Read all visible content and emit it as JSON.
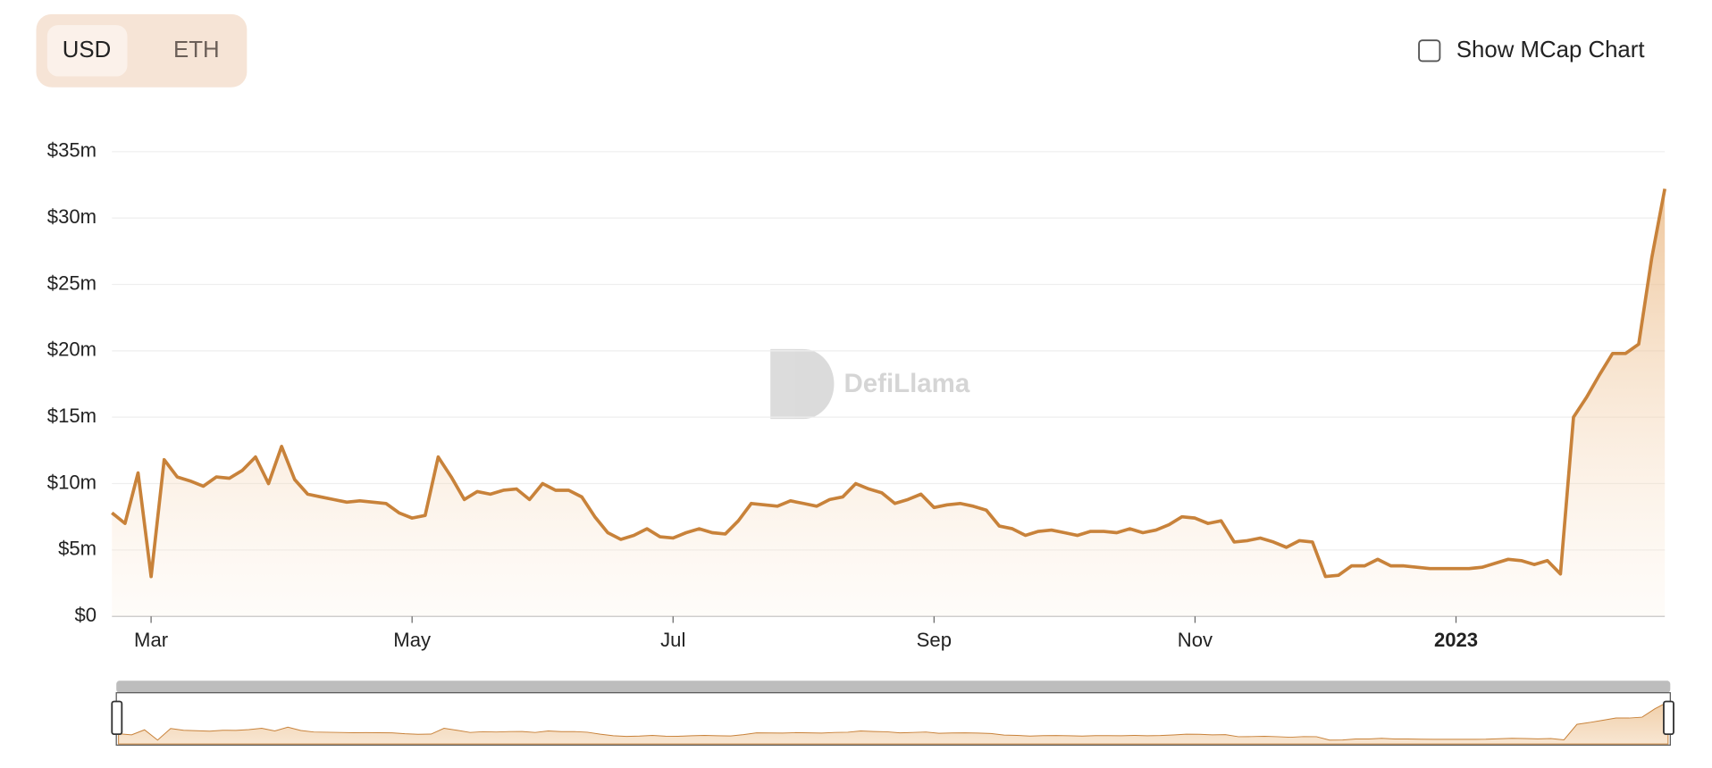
{
  "controls": {
    "currencies": [
      "USD",
      "ETH"
    ],
    "checkbox_label": "Show MCap Chart"
  },
  "watermark": "DefiLlama",
  "chart_data": {
    "type": "line",
    "color": "#c8823a",
    "fill": true,
    "grid": true,
    "categories": [
      null,
      null,
      null,
      "Mar",
      null,
      null,
      null,
      null,
      null,
      null,
      null,
      null,
      null,
      null,
      null,
      null,
      null,
      null,
      null,
      null,
      null,
      null,
      null,
      "May",
      null,
      null,
      null,
      null,
      null,
      null,
      null,
      null,
      null,
      null,
      null,
      null,
      null,
      null,
      null,
      null,
      null,
      null,
      null,
      "Jul",
      null,
      null,
      null,
      null,
      null,
      null,
      null,
      null,
      null,
      null,
      null,
      null,
      null,
      null,
      null,
      null,
      null,
      null,
      null,
      "Sep",
      null,
      null,
      null,
      null,
      null,
      null,
      null,
      null,
      null,
      null,
      null,
      null,
      null,
      null,
      null,
      null,
      null,
      null,
      null,
      "Nov",
      null,
      null,
      null,
      null,
      null,
      null,
      null,
      null,
      null,
      null,
      null,
      null,
      null,
      null,
      null,
      null,
      null,
      null,
      null,
      "2023",
      null,
      null,
      null,
      null,
      null,
      null,
      null,
      null,
      null,
      null,
      null,
      null,
      null,
      null,
      null,
      null
    ],
    "values": [
      7.8,
      7.0,
      10.8,
      3.0,
      11.8,
      10.5,
      10.2,
      9.8,
      10.5,
      10.4,
      11.0,
      12.0,
      10.0,
      12.8,
      10.3,
      9.2,
      9.0,
      8.8,
      8.6,
      8.7,
      8.6,
      8.5,
      7.8,
      7.4,
      7.6,
      12.0,
      10.5,
      8.8,
      9.4,
      9.2,
      9.5,
      9.6,
      8.8,
      10.0,
      9.5,
      9.5,
      9.0,
      7.5,
      6.3,
      5.8,
      6.1,
      6.6,
      6.0,
      5.9,
      6.3,
      6.6,
      6.3,
      6.2,
      7.2,
      8.5,
      8.4,
      8.3,
      8.7,
      8.5,
      8.3,
      8.8,
      9.0,
      10.0,
      9.6,
      9.3,
      8.5,
      8.8,
      9.2,
      8.2,
      8.4,
      8.5,
      8.3,
      8.0,
      6.8,
      6.6,
      6.1,
      6.4,
      6.5,
      6.3,
      6.1,
      6.4,
      6.4,
      6.3,
      6.6,
      6.3,
      6.5,
      6.9,
      7.5,
      7.4,
      7.0,
      7.2,
      5.6,
      5.7,
      5.9,
      5.6,
      5.2,
      5.7,
      5.6,
      3.0,
      3.1,
      3.8,
      3.8,
      4.3,
      3.8,
      3.8,
      3.7,
      3.6,
      3.6,
      3.6,
      3.6,
      3.7,
      4.0,
      4.3,
      4.2,
      3.9,
      4.2,
      3.2,
      15.0,
      16.5,
      18.2,
      19.8,
      19.8,
      20.5,
      27.0,
      32.2
    ],
    "ylim": [
      0,
      35
    ],
    "yticks": [
      {
        "value": 0,
        "label": "$0"
      },
      {
        "value": 5,
        "label": "$5m"
      },
      {
        "value": 10,
        "label": "$10m"
      },
      {
        "value": 15,
        "label": "$15m"
      },
      {
        "value": 20,
        "label": "$20m"
      },
      {
        "value": 25,
        "label": "$25m"
      },
      {
        "value": 30,
        "label": "$30m"
      },
      {
        "value": 35,
        "label": "$35m"
      }
    ]
  }
}
